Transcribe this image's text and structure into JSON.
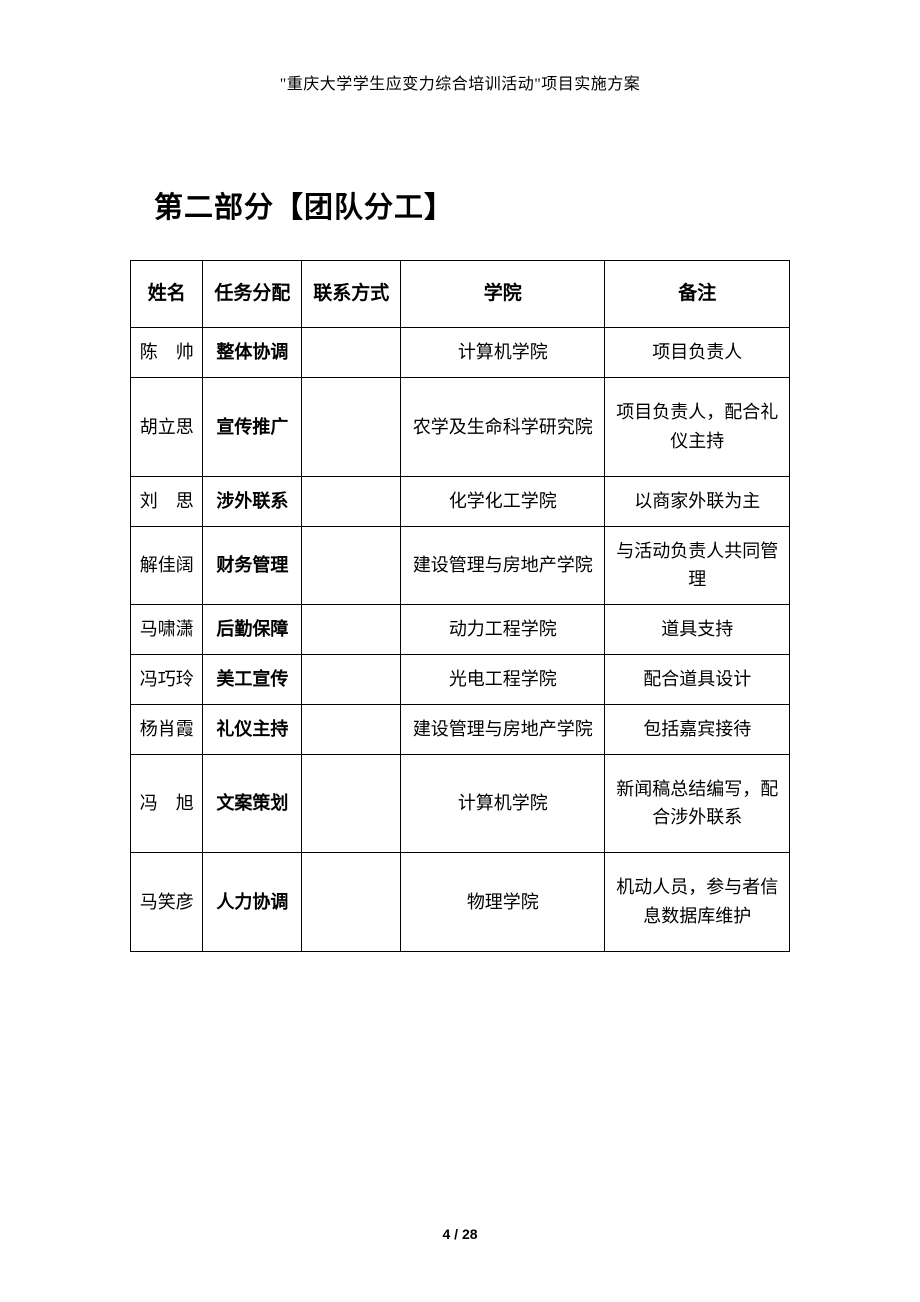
{
  "header": "\"重庆大学学生应变力综合培训活动\"项目实施方案",
  "section_title": "第二部分【团队分工】",
  "columns": {
    "name": "姓名",
    "task": "任务分配",
    "contact": "联系方式",
    "college": "学院",
    "note": "备注"
  },
  "rows": [
    {
      "name": "陈　帅",
      "task": "整体协调",
      "contact": "",
      "college": "计算机学院",
      "note": "项目负责人",
      "tall": false,
      "spaced": false
    },
    {
      "name": "胡立思",
      "task": "宣传推广",
      "contact": "",
      "college": "农学及生命科学研究院",
      "note": "项目负责人，配合礼仪主持",
      "tall": true,
      "spaced": false
    },
    {
      "name": "刘　思",
      "task": "涉外联系",
      "contact": "",
      "college": "化学化工学院",
      "note": "以商家外联为主",
      "tall": false,
      "spaced": false
    },
    {
      "name": "解佳阔",
      "task": "财务管理",
      "contact": "",
      "college": "建设管理与房地产学院",
      "note": "与活动负责人共同管理",
      "tall": false,
      "spaced": false
    },
    {
      "name": "马啸潇",
      "task": "后勤保障",
      "contact": "",
      "college": "动力工程学院",
      "note": "道具支持",
      "tall": false,
      "spaced": false
    },
    {
      "name": "冯巧玲",
      "task": "美工宣传",
      "contact": "",
      "college": "光电工程学院",
      "note": "配合道具设计",
      "tall": false,
      "spaced": false
    },
    {
      "name": "杨肖霞",
      "task": "礼仪主持",
      "contact": "",
      "college": "建设管理与房地产学院",
      "note": "包括嘉宾接待",
      "tall": false,
      "spaced": false
    },
    {
      "name": "冯　旭",
      "task": "文案策划",
      "contact": "",
      "college": "计算机学院",
      "note": "新闻稿总结编写，配合涉外联系",
      "tall": true,
      "spaced": false
    },
    {
      "name": "马笑彦",
      "task": "人力协调",
      "contact": "",
      "college": "物理学院",
      "note": "机动人员，参与者信息数据库维护",
      "tall": true,
      "spaced": false
    }
  ],
  "footer": "4 / 28"
}
